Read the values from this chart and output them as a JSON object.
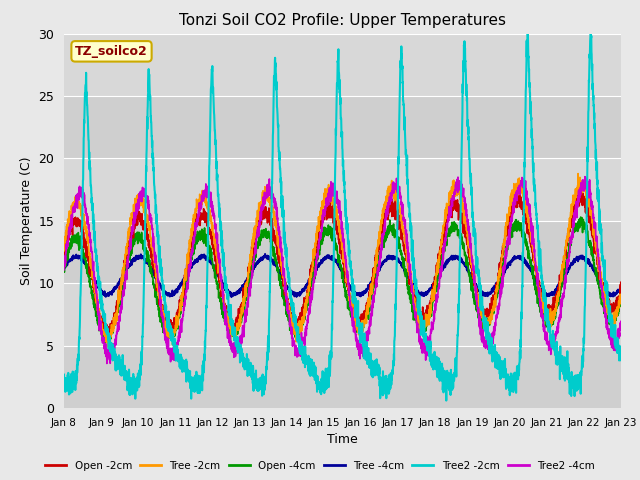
{
  "title": "Tonzi Soil CO2 Profile: Upper Temperatures",
  "xlabel": "Time",
  "ylabel": "Soil Temperature (C)",
  "ylim": [
    0,
    30
  ],
  "watermark": "TZ_soilco2",
  "fig_facecolor": "#e8e8e8",
  "plot_bg_color": "#d8d8d8",
  "series": [
    {
      "label": "Open -2cm",
      "color": "#cc0000"
    },
    {
      "label": "Tree -2cm",
      "color": "#ff9900"
    },
    {
      "label": "Open -4cm",
      "color": "#009900"
    },
    {
      "label": "Tree -4cm",
      "color": "#000099"
    },
    {
      "label": "Tree2 -2cm",
      "color": "#00cccc"
    },
    {
      "label": "Tree2 -4cm",
      "color": "#cc00cc"
    }
  ],
  "x_tick_labels": [
    "Jan 8",
    "Jan 9",
    "Jan 10",
    "Jan 11",
    "Jan 12",
    "Jan 13",
    "Jan 14",
    "Jan 15",
    "Jan 16",
    "Jan 17",
    "Jan 18",
    "Jan 19",
    "Jan 20",
    "Jan 21",
    "Jan 22",
    "Jan 23"
  ],
  "days": 15,
  "n_points": 3000
}
